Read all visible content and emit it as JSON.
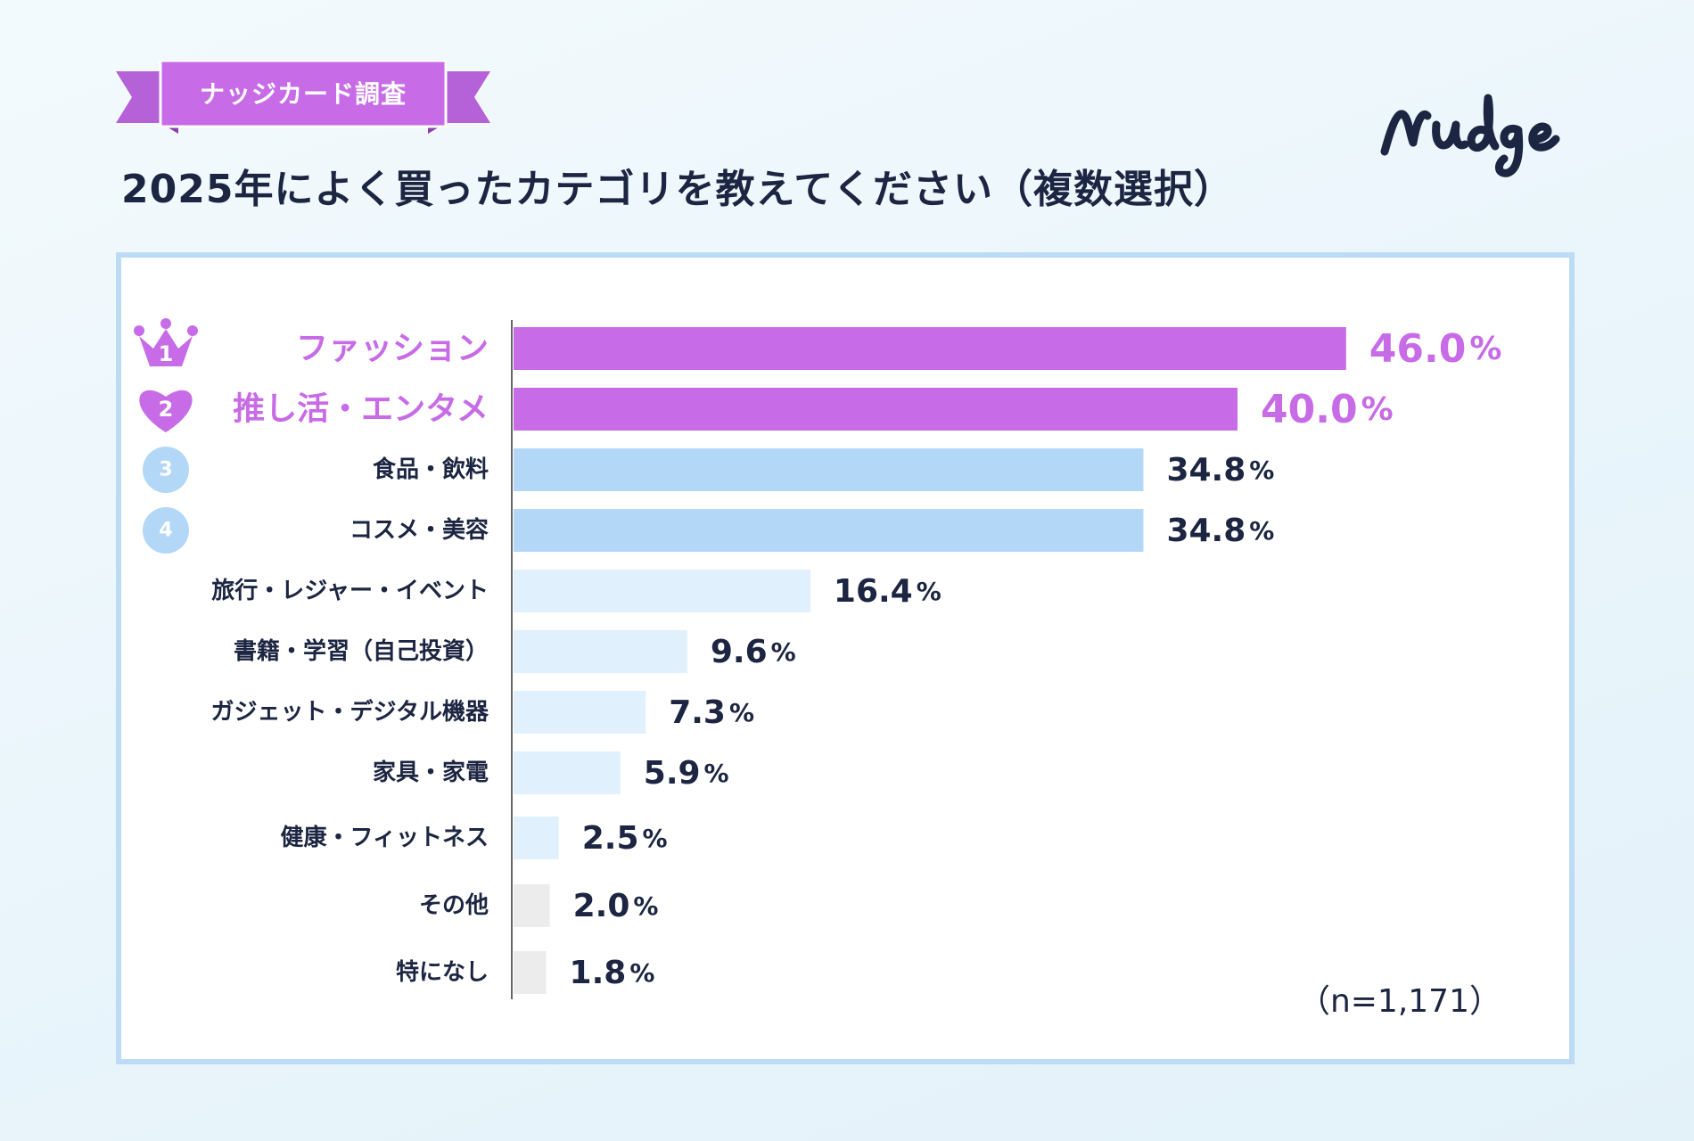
{
  "survey_badge": "ナッジカード調査",
  "title": "2025年によく買ったカテゴリを教えてください（複数選択）",
  "logo_text": "nudge",
  "sample_size": "（n=1,171）",
  "colors": {
    "top_bar": "#c76be6",
    "top_label": "#c76be6",
    "rank_bar": "#b3d7f6",
    "rank_circle": "#b3d7f6",
    "light_bar": "#e0f0fc",
    "gray_bar": "#ececec",
    "text": "#1c2541",
    "card_border": "#bcdcf6",
    "axis": "#666666"
  },
  "chart_data": {
    "type": "bar",
    "orientation": "horizontal",
    "value_suffix": "%",
    "categories": [
      "ファッション",
      "推し活・エンタメ",
      "食品・飲料",
      "コスメ・美容",
      "旅行・レジャー・イベント",
      "書籍・学習（自己投資）",
      "ガジェット・デジタル機器",
      "家具・家電",
      "健康・フィットネス",
      "その他",
      "特になし"
    ],
    "values": [
      46.0,
      40.0,
      34.8,
      34.8,
      16.4,
      9.6,
      7.3,
      5.9,
      2.5,
      2.0,
      1.8
    ],
    "value_labels": [
      "46.0",
      "40.0",
      "34.8",
      "34.8",
      "16.4",
      "9.6",
      "7.3",
      "5.9",
      "2.5",
      "2.0",
      "1.8"
    ],
    "rank_badges": [
      "1",
      "2",
      "3",
      "4"
    ],
    "rank_badge_icons": [
      "crown-icon",
      "heart-icon",
      "circle-icon",
      "circle-icon"
    ],
    "xlim": [
      0,
      50
    ]
  }
}
